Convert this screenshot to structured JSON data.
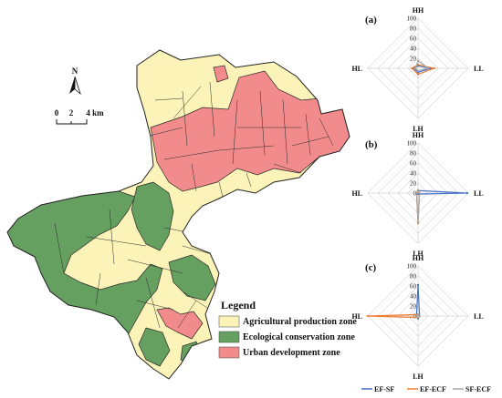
{
  "north": {
    "letter": "N"
  },
  "scalebar": {
    "ticks": [
      "0",
      "2",
      "4 km"
    ]
  },
  "legend": {
    "title": "Legend",
    "items": [
      {
        "label": "Agricultural production zone",
        "color": "#fbf3b8"
      },
      {
        "label": "Ecological conservation zone",
        "color": "#66a060"
      },
      {
        "label": "Urban development zone",
        "color": "#f28c8c"
      }
    ]
  },
  "chart_data": [
    {
      "type": "radar",
      "panel": "(a)",
      "axes": [
        "HH",
        "LL",
        "LH",
        "HL"
      ],
      "ticks": [
        "0",
        "20",
        "40",
        "60",
        "80",
        "100"
      ],
      "range": [
        0,
        100
      ],
      "series": [
        {
          "name": "EF-SF",
          "values": [
            5,
            25,
            8,
            8
          ]
        },
        {
          "name": "EF-ECF",
          "values": [
            7,
            32,
            12,
            12
          ]
        },
        {
          "name": "SF-ECF",
          "values": [
            15,
            20,
            5,
            5
          ]
        }
      ]
    },
    {
      "type": "radar",
      "panel": "(b)",
      "axes": [
        "HH",
        "LL",
        "LH",
        "HL"
      ],
      "ticks": [
        "0",
        "20",
        "40",
        "60",
        "80",
        "100"
      ],
      "range": [
        0,
        100
      ],
      "series": [
        {
          "name": "EF-SF",
          "values": [
            5,
            98,
            2,
            3
          ]
        },
        {
          "name": "EF-ECF",
          "values": [
            6,
            3,
            60,
            3
          ]
        },
        {
          "name": "SF-ECF",
          "values": [
            5,
            3,
            58,
            3
          ]
        }
      ]
    },
    {
      "type": "radar",
      "panel": "(c)",
      "axes": [
        "HH",
        "LL",
        "LH",
        "HL"
      ],
      "ticks": [
        "0",
        "20",
        "40",
        "60",
        "80",
        "100"
      ],
      "range": [
        0,
        100
      ],
      "series": [
        {
          "name": "EF-SF",
          "values": [
            62,
            3,
            5,
            3
          ]
        },
        {
          "name": "EF-ECF",
          "values": [
            3,
            2,
            3,
            100
          ]
        },
        {
          "name": "SF-ECF",
          "values": [
            3,
            3,
            3,
            3
          ]
        }
      ]
    }
  ],
  "series_colors": {
    "EF-SF": "#4472c4",
    "EF-ECF": "#ed7d31",
    "SF-ECF": "#a5a5a5"
  },
  "chart_legend": [
    "EF-SF",
    "EF-ECF",
    "SF-ECF"
  ]
}
